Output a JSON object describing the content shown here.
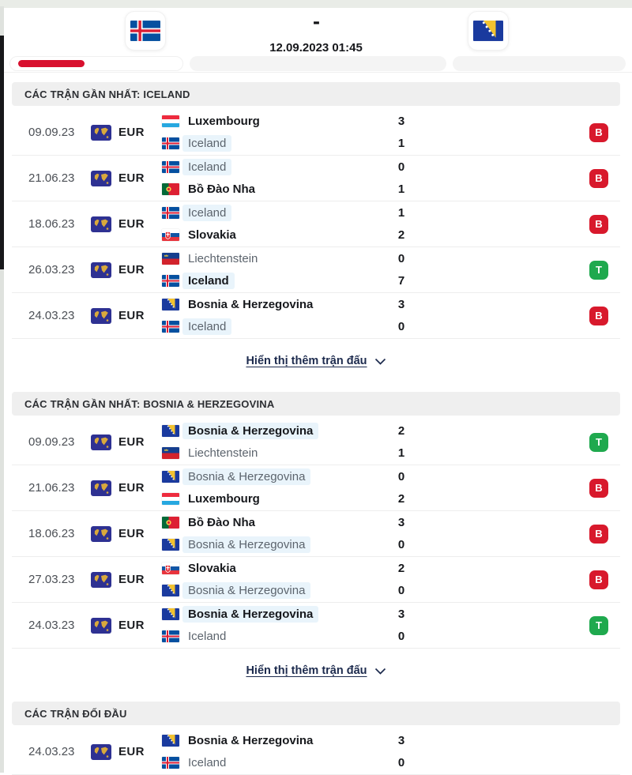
{
  "colors": {
    "accent_red": "#d8102e",
    "win_green": "#1fa94e",
    "loss_red": "#d8192c",
    "highlight_blue": "#e9f4fb",
    "link_navy": "#1d2b4e",
    "section_bar_gray": "#efefef",
    "eur_navy": "#2e3192",
    "eur_gold": "#d9a93c"
  },
  "icons": {
    "competition": "eur-globe-map",
    "chevron_down": "∨",
    "score_separator_shape": "bold-dash"
  },
  "header": {
    "home_flag": "iceland",
    "away_flag": "bosnia",
    "score_separator": "-",
    "datetime": "12.09.2023 01:45"
  },
  "result_legend": {
    "win_letter": "T",
    "loss_letter": "B"
  },
  "sections": [
    {
      "title": "CÁC TRẬN GẦN NHẤT: ICELAND",
      "show_more": "Hiển thị thêm trận đấu",
      "matches": [
        {
          "date": "09.09.23",
          "competition": "EUR",
          "result": "B",
          "teams": [
            {
              "name": "Luxembourg",
              "flag": "luxembourg",
              "score": "3",
              "winner": true,
              "highlighted": false
            },
            {
              "name": "Iceland",
              "flag": "iceland",
              "score": "1",
              "winner": false,
              "highlighted": true
            }
          ]
        },
        {
          "date": "21.06.23",
          "competition": "EUR",
          "result": "B",
          "teams": [
            {
              "name": "Iceland",
              "flag": "iceland",
              "score": "0",
              "winner": false,
              "highlighted": true
            },
            {
              "name": "Bồ Đào Nha",
              "flag": "portugal",
              "score": "1",
              "winner": true,
              "highlighted": false
            }
          ]
        },
        {
          "date": "18.06.23",
          "competition": "EUR",
          "result": "B",
          "teams": [
            {
              "name": "Iceland",
              "flag": "iceland",
              "score": "1",
              "winner": false,
              "highlighted": true
            },
            {
              "name": "Slovakia",
              "flag": "slovakia",
              "score": "2",
              "winner": true,
              "highlighted": false
            }
          ]
        },
        {
          "date": "26.03.23",
          "competition": "EUR",
          "result": "T",
          "teams": [
            {
              "name": "Liechtenstein",
              "flag": "liechtenstein",
              "score": "0",
              "winner": false,
              "highlighted": false
            },
            {
              "name": "Iceland",
              "flag": "iceland",
              "score": "7",
              "winner": true,
              "highlighted": true
            }
          ]
        },
        {
          "date": "24.03.23",
          "competition": "EUR",
          "result": "B",
          "teams": [
            {
              "name": "Bosnia & Herzegovina",
              "flag": "bosnia",
              "score": "3",
              "winner": true,
              "highlighted": false
            },
            {
              "name": "Iceland",
              "flag": "iceland",
              "score": "0",
              "winner": false,
              "highlighted": true
            }
          ]
        }
      ]
    },
    {
      "title": "CÁC TRẬN GẦN NHẤT: BOSNIA & HERZEGOVINA",
      "show_more": "Hiển thị thêm trận đấu",
      "matches": [
        {
          "date": "09.09.23",
          "competition": "EUR",
          "result": "T",
          "teams": [
            {
              "name": "Bosnia & Herzegovina",
              "flag": "bosnia",
              "score": "2",
              "winner": true,
              "highlighted": true
            },
            {
              "name": "Liechtenstein",
              "flag": "liechtenstein",
              "score": "1",
              "winner": false,
              "highlighted": false
            }
          ]
        },
        {
          "date": "21.06.23",
          "competition": "EUR",
          "result": "B",
          "teams": [
            {
              "name": "Bosnia & Herzegovina",
              "flag": "bosnia",
              "score": "0",
              "winner": false,
              "highlighted": true
            },
            {
              "name": "Luxembourg",
              "flag": "luxembourg",
              "score": "2",
              "winner": true,
              "highlighted": false
            }
          ]
        },
        {
          "date": "18.06.23",
          "competition": "EUR",
          "result": "B",
          "teams": [
            {
              "name": "Bồ Đào Nha",
              "flag": "portugal",
              "score": "3",
              "winner": true,
              "highlighted": false
            },
            {
              "name": "Bosnia & Herzegovina",
              "flag": "bosnia",
              "score": "0",
              "winner": false,
              "highlighted": true
            }
          ]
        },
        {
          "date": "27.03.23",
          "competition": "EUR",
          "result": "B",
          "teams": [
            {
              "name": "Slovakia",
              "flag": "slovakia",
              "score": "2",
              "winner": true,
              "highlighted": false
            },
            {
              "name": "Bosnia & Herzegovina",
              "flag": "bosnia",
              "score": "0",
              "winner": false,
              "highlighted": true
            }
          ]
        },
        {
          "date": "24.03.23",
          "competition": "EUR",
          "result": "T",
          "teams": [
            {
              "name": "Bosnia & Herzegovina",
              "flag": "bosnia",
              "score": "3",
              "winner": true,
              "highlighted": true
            },
            {
              "name": "Iceland",
              "flag": "iceland",
              "score": "0",
              "winner": false,
              "highlighted": false
            }
          ]
        }
      ]
    },
    {
      "title": "CÁC TRẬN ĐỐI ĐẦU",
      "show_more": null,
      "matches": [
        {
          "date": "24.03.23",
          "competition": "EUR",
          "result": null,
          "teams": [
            {
              "name": "Bosnia & Herzegovina",
              "flag": "bosnia",
              "score": "3",
              "winner": true,
              "highlighted": false
            },
            {
              "name": "Iceland",
              "flag": "iceland",
              "score": "0",
              "winner": false,
              "highlighted": false
            }
          ]
        }
      ]
    }
  ]
}
